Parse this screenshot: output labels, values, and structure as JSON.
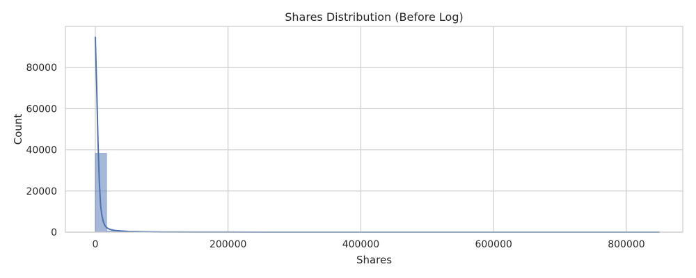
{
  "chart_data": {
    "type": "histogram",
    "title": "Shares Distribution (Before Log)",
    "xlabel": "Shares",
    "ylabel": "Count",
    "xlim": [
      -45000,
      885000
    ],
    "ylim": [
      0,
      100000
    ],
    "x_ticks": [
      0,
      200000,
      400000,
      600000,
      800000
    ],
    "y_ticks": [
      0,
      20000,
      40000,
      60000,
      80000
    ],
    "x_tick_labels": [
      "0",
      "200000",
      "400000",
      "600000",
      "800000"
    ],
    "y_tick_labels": [
      "0",
      "20000",
      "40000",
      "60000",
      "80000"
    ],
    "grid": true,
    "legend": false,
    "bin_width": 16980,
    "bins": [
      {
        "x0": 0,
        "x1": 16980,
        "count": 38300
      },
      {
        "x0": 16980,
        "x1": 33960,
        "count": 600
      },
      {
        "x0": 33960,
        "x1": 50940,
        "count": 200
      },
      {
        "x0": 50940,
        "x1": 67920,
        "count": 100
      },
      {
        "x0": 67920,
        "x1": 84900,
        "count": 50
      }
    ],
    "kde": {
      "x": [
        0,
        2000,
        4000,
        6000,
        8000,
        10000,
        12000,
        14000,
        17000,
        20000,
        25000,
        30000,
        40000,
        50000,
        70000,
        100000,
        150000,
        200000,
        300000,
        500000,
        700000,
        850000
      ],
      "y": [
        95000,
        72000,
        45000,
        25000,
        13000,
        8000,
        5200,
        3500,
        2200,
        1600,
        1100,
        800,
        550,
        350,
        200,
        100,
        50,
        30,
        15,
        5,
        2,
        0
      ]
    },
    "colors": {
      "bar_fill": "#4c72b0",
      "bar_opacity": 0.5,
      "kde_line": "#4c72b0",
      "grid": "#cccccc",
      "background": "#ffffff",
      "text": "#262626"
    }
  }
}
